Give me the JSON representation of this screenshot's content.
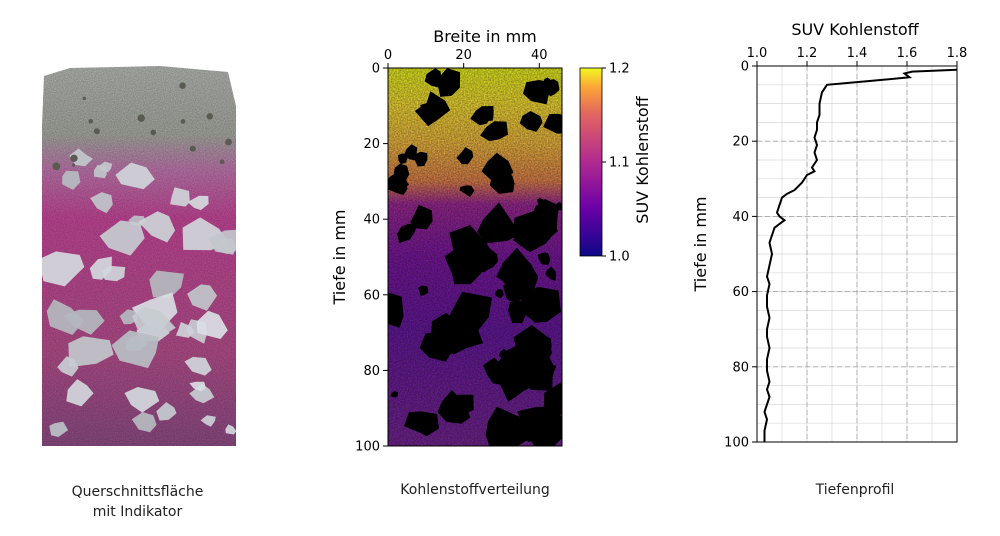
{
  "captions": {
    "cross_section": [
      "Querschnittsfläche",
      "mit Indikator"
    ],
    "distribution": "Kohlenstoffverteilung",
    "profile": "Tiefenprofil"
  },
  "colors": {
    "concrete_grey": "#b9bcb4",
    "indicator_magenta": "#c8489c",
    "plasma_low": "#0d0887",
    "plasma_mid": "#cc4778",
    "plasma_high": "#f0f921",
    "profile_line": "#000000",
    "grid": "#b0b0b0"
  },
  "chart_data": [
    {
      "type": "heatmap",
      "xlabel": "Breite in mm",
      "ylabel": "Tiefe in mm",
      "xlim": [
        0,
        46
      ],
      "ylim": [
        100,
        0
      ],
      "xticks": [
        0,
        20,
        40
      ],
      "yticks": [
        0,
        20,
        40,
        60,
        80,
        100
      ],
      "x_axis_position": "top",
      "colorbar": {
        "label": "SUV Kohlenstoff",
        "range": [
          1.0,
          1.2
        ],
        "ticks": [
          "1.0",
          "1.1",
          "1.2"
        ],
        "colormap": "plasma"
      }
    },
    {
      "type": "line",
      "xlabel": "SUV Kohlenstoff",
      "ylabel": "Tiefe in mm",
      "xlim": [
        1.0,
        1.8
      ],
      "ylim": [
        100,
        0
      ],
      "xticks": [
        "1.0",
        "1.2",
        "1.4",
        "1.6",
        "1.8"
      ],
      "yticks": [
        0,
        20,
        40,
        60,
        80,
        100
      ],
      "x_axis_position": "top",
      "grid": true,
      "series": [
        {
          "x": [
            1.8,
            1.62,
            1.59,
            1.61,
            1.45,
            1.28,
            1.26,
            1.25,
            1.25,
            1.24,
            1.24,
            1.23,
            1.24,
            1.23,
            1.24,
            1.22,
            1.23,
            1.2,
            1.18,
            1.15,
            1.12,
            1.1,
            1.09,
            1.08,
            1.09,
            1.11,
            1.07,
            1.06,
            1.05,
            1.06,
            1.05,
            1.04,
            1.05,
            1.04,
            1.04,
            1.05,
            1.04,
            1.04,
            1.05,
            1.04,
            1.04,
            1.05,
            1.04,
            1.05,
            1.04,
            1.03,
            1.04,
            1.03,
            1.03
          ],
          "y": [
            1,
            1.5,
            2,
            3,
            4,
            5,
            7,
            10,
            13,
            15,
            17,
            19,
            21,
            23,
            25,
            27,
            28,
            29,
            31,
            33,
            34,
            35,
            37,
            39,
            40,
            41,
            43,
            45,
            47,
            50,
            53,
            56,
            58,
            61,
            64,
            67,
            70,
            72,
            75,
            78,
            81,
            84,
            86,
            88,
            90,
            92,
            94,
            97,
            100
          ]
        }
      ]
    }
  ]
}
